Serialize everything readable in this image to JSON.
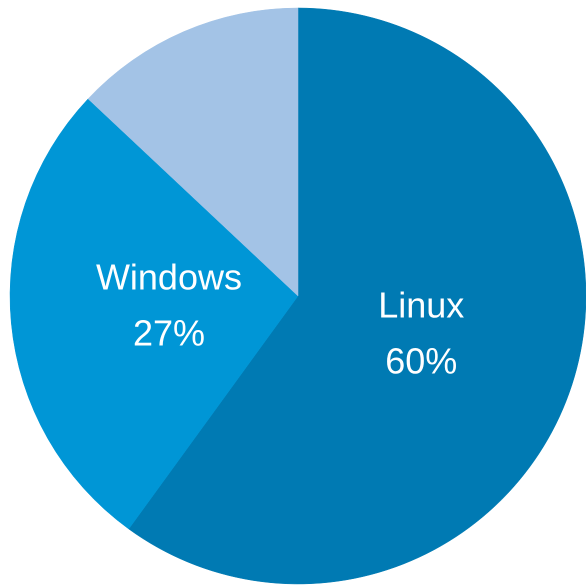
{
  "chart_data": {
    "type": "pie",
    "categories": [
      "Linux",
      "Windows",
      null
    ],
    "values": [
      60,
      27,
      13
    ],
    "value_labels": [
      "60%",
      "27%",
      null
    ],
    "colors": [
      "#007ab3",
      "#0096d6",
      "#a3c3e6"
    ]
  }
}
